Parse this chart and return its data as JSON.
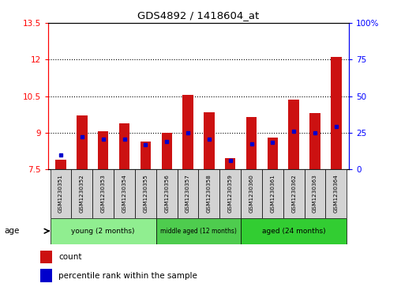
{
  "title": "GDS4892 / 1418604_at",
  "samples": [
    "GSM1230351",
    "GSM1230352",
    "GSM1230353",
    "GSM1230354",
    "GSM1230355",
    "GSM1230356",
    "GSM1230357",
    "GSM1230358",
    "GSM1230359",
    "GSM1230360",
    "GSM1230361",
    "GSM1230362",
    "GSM1230363",
    "GSM1230364"
  ],
  "red_values": [
    7.9,
    9.7,
    9.05,
    9.4,
    8.65,
    9.0,
    10.55,
    9.85,
    7.95,
    9.65,
    8.8,
    10.35,
    9.8,
    12.1
  ],
  "blue_values": [
    8.1,
    8.85,
    8.75,
    8.75,
    8.5,
    8.65,
    9.0,
    8.75,
    7.85,
    8.55,
    8.6,
    9.05,
    9.0,
    9.25
  ],
  "ymin": 7.5,
  "ymax": 13.5,
  "yticks": [
    7.5,
    9.0,
    10.5,
    12.0,
    13.5
  ],
  "ytick_labels": [
    "7.5",
    "9",
    "10.5",
    "12",
    "13.5"
  ],
  "y2min": 0,
  "y2max": 100,
  "y2ticks": [
    0,
    25,
    50,
    75,
    100
  ],
  "y2tick_labels": [
    "0",
    "25",
    "50",
    "75",
    "100%"
  ],
  "dotted_lines": [
    9.0,
    10.5,
    12.0
  ],
  "group_starts": [
    0,
    5,
    9
  ],
  "group_ends": [
    4,
    8,
    13
  ],
  "group_labels": [
    "young (2 months)",
    "middle aged (12 months)",
    "aged (24 months)"
  ],
  "group_colors": [
    "#90EE90",
    "#4ECC4E",
    "#32CD32"
  ],
  "bar_color": "#CC1111",
  "blue_color": "#0000CC",
  "bar_width": 0.5,
  "bar_bottom": 7.5,
  "sample_bg_color": "#D3D3D3",
  "background_plot": "#FFFFFF"
}
